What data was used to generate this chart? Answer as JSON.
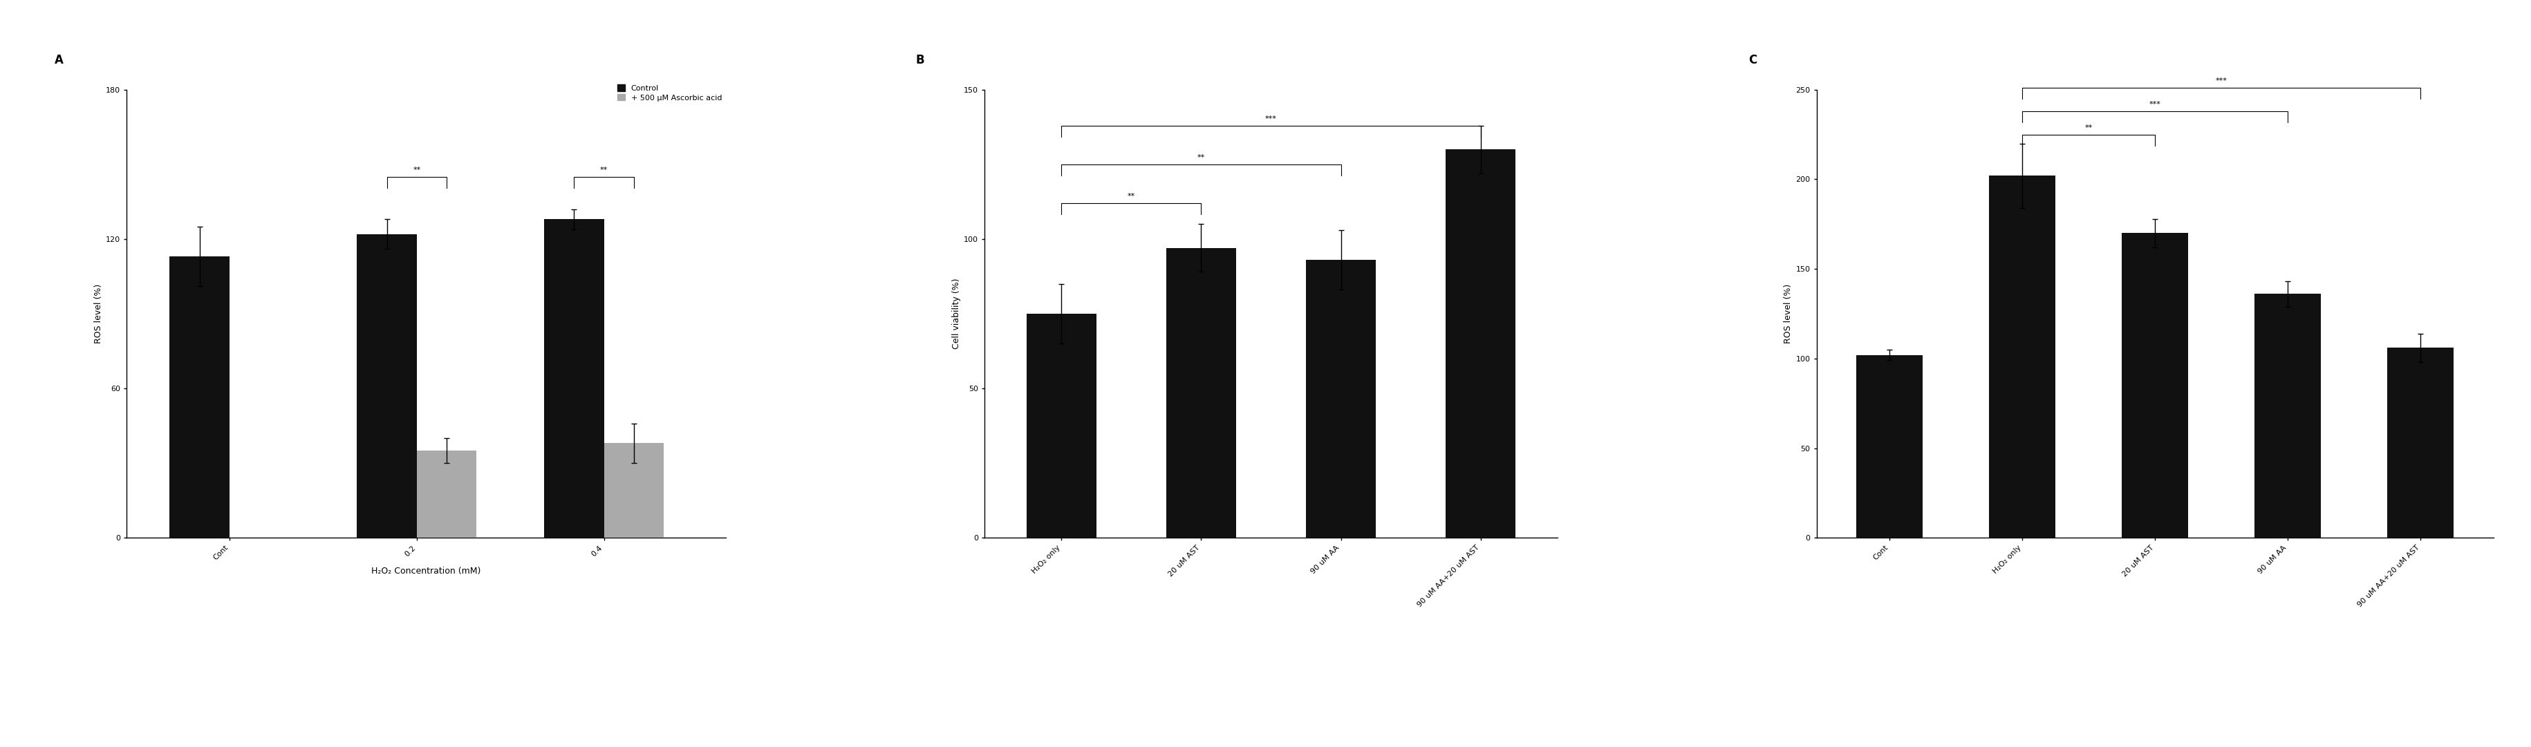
{
  "panel_A": {
    "label": "A",
    "categories": [
      "Cont",
      "0.2",
      "0.4"
    ],
    "control_values": [
      113,
      122,
      128
    ],
    "control_errors": [
      12,
      6,
      4
    ],
    "treatment_values": [
      null,
      35,
      38
    ],
    "treatment_errors": [
      null,
      5,
      8
    ],
    "ylabel": "ROS level (%)",
    "xlabel": "H₂O₂ Concentration (mM)",
    "ylim": [
      0,
      180
    ],
    "yticks": [
      0,
      60,
      120,
      180
    ],
    "legend_labels": [
      "Control",
      "+ 500 μM Ascorbic acid"
    ]
  },
  "panel_B": {
    "label": "B",
    "categories": [
      "H₂O₂ only",
      "20 uM AST",
      "90 uM AA",
      "90 uM AA+20 uM AST"
    ],
    "values": [
      75,
      97,
      93,
      130
    ],
    "errors": [
      10,
      8,
      10,
      8
    ],
    "ylabel": "Cell viability (%)",
    "ylim": [
      0,
      150
    ],
    "yticks": [
      0,
      50,
      100,
      150
    ]
  },
  "panel_B_label": "B",
  "panel_C": {
    "label": "C",
    "categories": [
      "Cont",
      "H₂O₂ only",
      "20 uM AST",
      "90 uM AA",
      "90 uM AA+20 uM AST"
    ],
    "values": [
      102,
      202,
      170,
      136,
      106
    ],
    "errors": [
      3,
      18,
      8,
      7,
      8
    ],
    "ylabel": "ROS level (%)",
    "ylim": [
      0,
      250
    ],
    "yticks": [
      0,
      50,
      100,
      150,
      200,
      250
    ]
  },
  "bar_color_black": "#111111",
  "bar_color_gray": "#aaaaaa",
  "background_color": "#ffffff",
  "fontsize_label": 9,
  "fontsize_tick": 8,
  "fontsize_panel_label": 12,
  "fontsize_sig": 8,
  "fontsize_legend": 8
}
